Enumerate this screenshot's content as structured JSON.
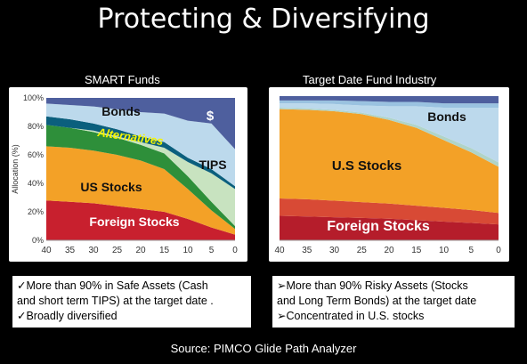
{
  "slide": {
    "title": "Protecting & Diversifying",
    "source": "Source: PIMCO Glide Path Analyzer"
  },
  "chart_data": [
    {
      "title": "SMART Funds",
      "type": "area",
      "stacked": true,
      "ylabel": "Allocation (%)",
      "xlabel": "",
      "x": [
        40,
        35,
        30,
        25,
        20,
        15,
        10,
        5,
        0
      ],
      "xlim": [
        40,
        0
      ],
      "ylim": [
        0,
        100
      ],
      "yticks": [
        "0%",
        "20%",
        "40%",
        "60%",
        "80%",
        "100%"
      ],
      "xticks": [
        "40",
        "35",
        "30",
        "25",
        "20",
        "15",
        "10",
        "5",
        "0"
      ],
      "series": [
        {
          "name": "Foreign Stocks",
          "color": "#c8202e",
          "values": [
            28,
            27,
            26,
            24,
            22,
            20,
            15,
            9,
            4
          ]
        },
        {
          "name": "US Stocks",
          "color": "#f3a127",
          "values": [
            38,
            38,
            37,
            36,
            34,
            30,
            21,
            12,
            4
          ]
        },
        {
          "name": "Alternatives",
          "color": "#2e8f3a",
          "values": [
            15,
            14,
            13,
            12,
            11,
            11,
            9,
            6,
            2
          ]
        },
        {
          "name": "TIPS",
          "color": "#c8e3c0",
          "values": [
            0,
            0,
            1,
            1,
            2,
            4,
            10,
            20,
            26
          ]
        },
        {
          "name": "",
          "color": "#0b5f7d",
          "values": [
            6,
            6,
            5,
            5,
            4,
            4,
            3,
            3,
            2
          ]
        },
        {
          "name": "Bonds",
          "color": "#bcd9ec",
          "values": [
            9,
            10,
            12,
            14,
            17,
            20,
            26,
            32,
            26
          ]
        },
        {
          "name": "$",
          "color": "#4e5f9e",
          "values": [
            4,
            5,
            6,
            8,
            10,
            11,
            16,
            18,
            36
          ]
        }
      ],
      "labels": {
        "bonds": "Bonds",
        "cash": "$",
        "alternatives": "Alternatives",
        "tips": "TIPS",
        "us": "US Stocks",
        "foreign": "Foreign Stocks"
      }
    },
    {
      "title": "Target Date Fund Industry",
      "type": "area",
      "stacked": true,
      "ylabel": "",
      "xlabel": "",
      "x": [
        40,
        35,
        30,
        25,
        20,
        15,
        10,
        5,
        0
      ],
      "xlim": [
        40,
        0
      ],
      "ylim": [
        0,
        100
      ],
      "xticks": [
        "40",
        "35",
        "30",
        "25",
        "20",
        "15",
        "10",
        "5",
        "0"
      ],
      "series": [
        {
          "name": "Foreign Stocks",
          "color": "#b51d2b",
          "values": [
            17,
            16.5,
            16,
            15.5,
            15,
            14,
            13,
            12,
            11
          ]
        },
        {
          "name": "",
          "color": "#d84a35",
          "values": [
            12,
            12,
            11.5,
            11,
            10.5,
            10,
            9.5,
            9,
            8
          ]
        },
        {
          "name": "U.S Stocks",
          "color": "#f3a127",
          "values": [
            62,
            62,
            62,
            61,
            58,
            54,
            47,
            40,
            32
          ]
        },
        {
          "name": "",
          "color": "#b0d4c8",
          "values": [
            1,
            1,
            1,
            1,
            1.5,
            2,
            2.5,
            3,
            3
          ]
        },
        {
          "name": "Bonds",
          "color": "#bcd9ec",
          "values": [
            3,
            3.5,
            4,
            5,
            8,
            13,
            20,
            28,
            38
          ]
        },
        {
          "name": "",
          "color": "#9ac2e0",
          "values": [
            2,
            2,
            2.5,
            3,
            3,
            3,
            3,
            3,
            3
          ]
        },
        {
          "name": "",
          "color": "#4e5f9e",
          "values": [
            3,
            3,
            3,
            3.5,
            4,
            4,
            5,
            5,
            5
          ]
        }
      ],
      "labels": {
        "bonds": "Bonds",
        "us": "U.S Stocks",
        "foreign": "Foreign Stocks"
      }
    }
  ],
  "notes_left": [
    "✓More than 90% in Safe Assets (Cash",
    "and short term TIPS) at the target date .",
    "✓Broadly diversified"
  ],
  "notes_right": [
    "➢More than 90% Risky Assets (Stocks",
    "and Long Term Bonds) at the target date",
    "➢Concentrated in U.S. stocks"
  ]
}
